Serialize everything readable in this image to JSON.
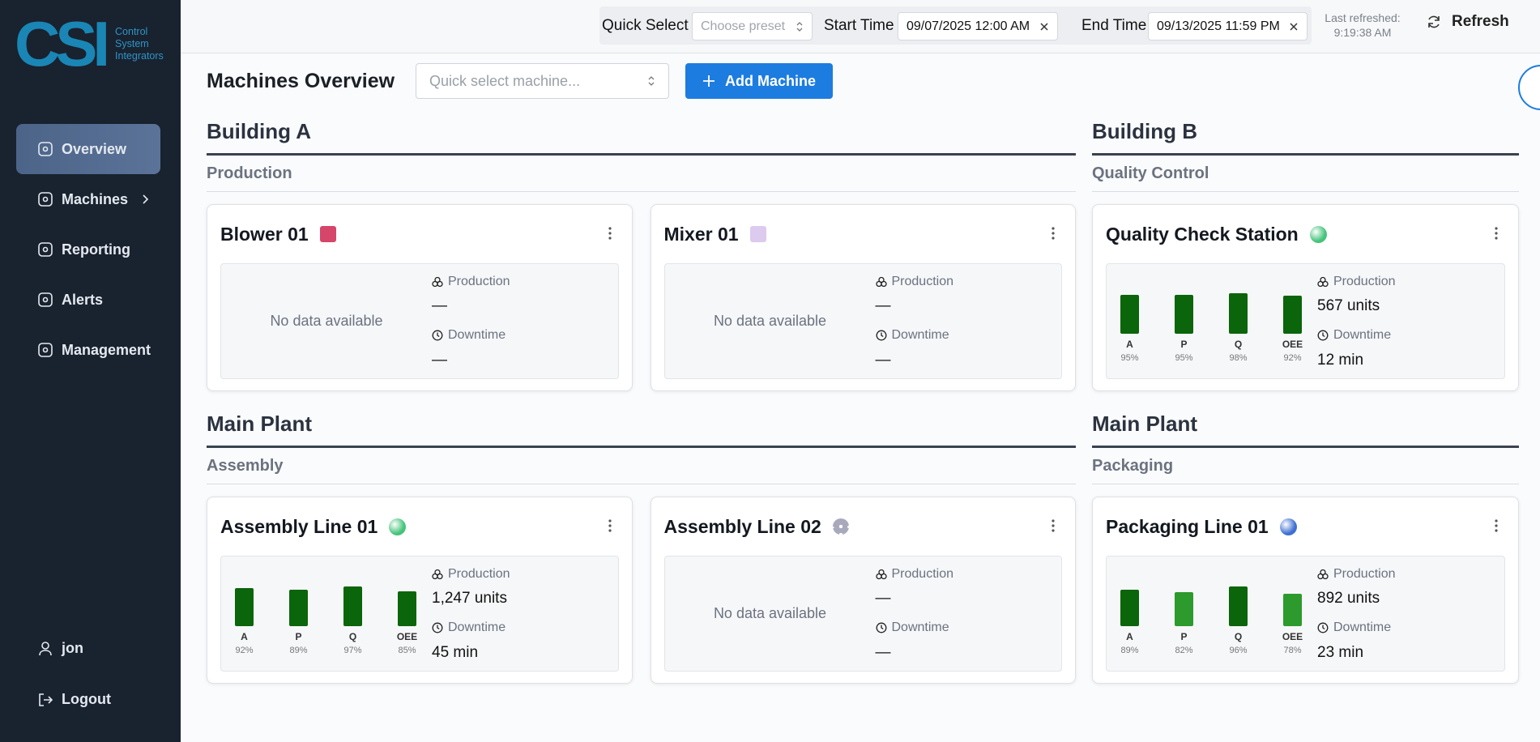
{
  "sidebar": {
    "logo_mark": "CSI",
    "logo_text": [
      "Control",
      "System",
      "Integrators"
    ],
    "nav": [
      {
        "label": "Overview",
        "active": true
      },
      {
        "label": "Machines",
        "expandable": true
      },
      {
        "label": "Reporting"
      },
      {
        "label": "Alerts"
      },
      {
        "label": "Management"
      }
    ],
    "user": "jon",
    "logout": "Logout"
  },
  "topbar": {
    "quick_select_label": "Quick Select",
    "quick_select_placeholder": "Choose preset",
    "start_label": "Start Time",
    "start_value": "09/07/2025 12:00 AM",
    "end_label": "End Time",
    "end_value": "09/13/2025 11:59 PM",
    "last_refreshed_label": "Last refreshed:",
    "last_refreshed_time": "9:19:38 AM",
    "refresh": "Refresh"
  },
  "header": {
    "title": "Machines Overview",
    "machine_search_placeholder": "Quick select machine...",
    "add_button": "Add Machine"
  },
  "sections": [
    {
      "building": "Building A",
      "area": "Production",
      "machines": [
        {
          "name": "Blower 01",
          "icon_shape": "square",
          "icon_color": "#d6456a",
          "no_data": "No data available",
          "production_label": "Production",
          "production": "—",
          "downtime_label": "Downtime",
          "downtime": "—"
        },
        {
          "name": "Mixer 01",
          "icon_shape": "square",
          "icon_color": "#dccbee",
          "no_data": "No data available",
          "production_label": "Production",
          "production": "—",
          "downtime_label": "Downtime",
          "downtime": "—"
        }
      ]
    },
    {
      "building": "Building B",
      "area": "Quality Control",
      "machines": [
        {
          "name": "Quality Check Station",
          "icon_shape": "circle",
          "icon_color": "#45c47a",
          "metrics": {
            "labels": [
              "A",
              "P",
              "Q",
              "OEE"
            ],
            "values": [
              95,
              95,
              98,
              92
            ],
            "value_labels": [
              "95%",
              "95%",
              "98%",
              "92%"
            ],
            "colors": [
              "#0b650b",
              "#0b650b",
              "#0b650b",
              "#0b650b"
            ],
            "ylim": [
              0,
              100
            ]
          },
          "production_label": "Production",
          "production": "567 units",
          "downtime_label": "Downtime",
          "downtime": "12 min"
        }
      ]
    },
    {
      "building": "Main Plant",
      "area": "Assembly",
      "machines": [
        {
          "name": "Assembly Line 01",
          "icon_shape": "circle",
          "icon_color": "#45c47a",
          "metrics": {
            "labels": [
              "A",
              "P",
              "Q",
              "OEE"
            ],
            "values": [
              92,
              89,
              97,
              85
            ],
            "value_labels": [
              "92%",
              "89%",
              "97%",
              "85%"
            ],
            "colors": [
              "#0b650b",
              "#0b650b",
              "#0b650b",
              "#0b650b"
            ],
            "ylim": [
              0,
              100
            ]
          },
          "production_label": "Production",
          "production": "1,247 units",
          "downtime_label": "Downtime",
          "downtime": "45 min"
        },
        {
          "name": "Assembly Line 02",
          "icon_shape": "gear",
          "icon_color": "#a9a9bd",
          "no_data": "No data available",
          "production_label": "Production",
          "production": "—",
          "downtime_label": "Downtime",
          "downtime": "—"
        }
      ]
    },
    {
      "building": "Main Plant",
      "area": "Packaging",
      "machines": [
        {
          "name": "Packaging Line 01",
          "icon_shape": "circle",
          "icon_color": "#3f6fd2",
          "metrics": {
            "labels": [
              "A",
              "P",
              "Q",
              "OEE"
            ],
            "values": [
              89,
              82,
              96,
              78
            ],
            "value_labels": [
              "89%",
              "82%",
              "96%",
              "78%"
            ],
            "colors": [
              "#0b650b",
              "#2d9a2d",
              "#0b650b",
              "#2d9a2d"
            ],
            "ylim": [
              0,
              100
            ]
          },
          "production_label": "Production",
          "production": "892 units",
          "downtime_label": "Downtime",
          "downtime": "23 min"
        }
      ]
    }
  ]
}
